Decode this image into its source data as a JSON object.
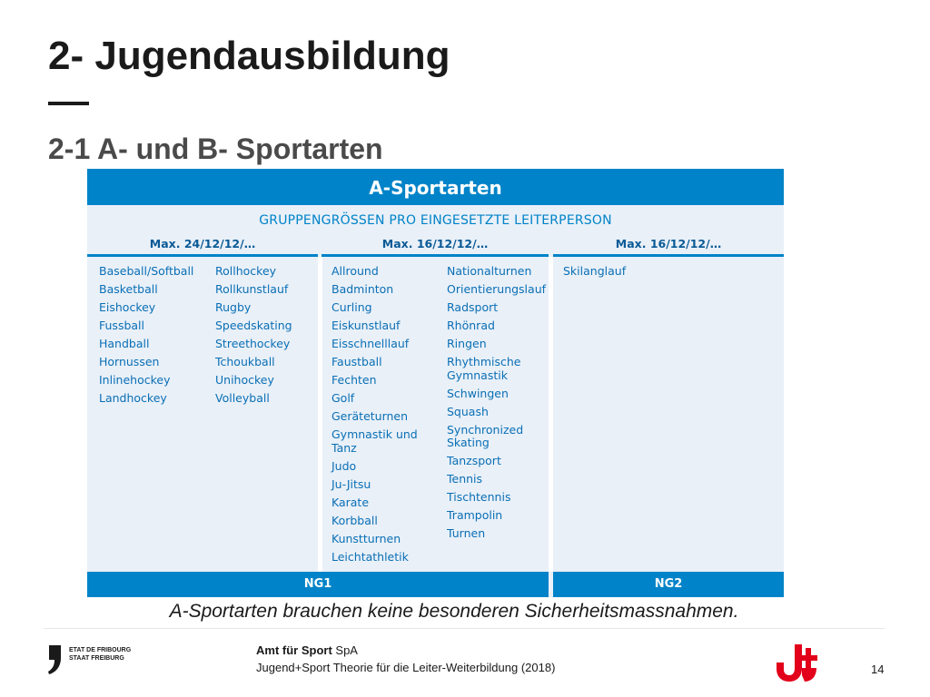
{
  "slide": {
    "title": "2- Jugendausbildung",
    "dash": "—",
    "subtitle": "2-1 A- und B- Sportarten",
    "note": "A-Sportarten brauchen keine besonderen Sicherheitsmassnahmen.",
    "page_number": "14"
  },
  "table": {
    "header": "A-Sportarten",
    "group_title": "GRUPPENGRÖSSEN PRO EINGESETZTE LEITERPERSON",
    "columns": [
      {
        "max": "Max. 24/12/12/…",
        "list_a": [
          "Baseball/Softball",
          "Basketball",
          "Eishockey",
          "Fussball",
          "Handball",
          "Hornussen",
          "Inlinehockey",
          "Landhockey"
        ],
        "list_b": [
          "Rollhockey",
          "Rollkunstlauf",
          "Rugby",
          "Speedskating",
          "Streethockey",
          "Tchoukball",
          "Unihockey",
          "Volleyball"
        ]
      },
      {
        "max": "Max. 16/12/12/…",
        "list_a": [
          "Allround",
          "Badminton",
          "Curling",
          "Eiskunstlauf",
          "Eisschnelllauf",
          "Faustball",
          "Fechten",
          "Golf",
          "Geräteturnen",
          "Gymnastik und Tanz",
          "Judo",
          "Ju-Jitsu",
          "Karate",
          "Korbball",
          "Kunstturnen",
          "Leichtathletik"
        ],
        "list_b": [
          "Nationalturnen",
          "Orientierungslauf",
          "Radsport",
          "Rhönrad",
          "Ringen",
          "Rhythmische Gymnastik",
          "Schwingen",
          "Squash",
          "Synchronized Skating",
          "Tanzsport",
          "Tennis",
          "Tischtennis",
          "Trampolin",
          "Turnen"
        ]
      },
      {
        "max": "Max. 16/12/12/…",
        "list_a": [
          "Skilanglauf"
        ],
        "list_b": []
      }
    ],
    "footer_ng1": "NG1",
    "footer_ng2": "NG2"
  },
  "footer": {
    "canton_line1": "ETAT DE FRIBOURG",
    "canton_line2": "STAAT FREIBURG",
    "office_bold": "Amt für Sport",
    "office_suffix": " SpA",
    "course": "Jugend+Sport Theorie für die Leiter-Weiterbildung (2018)"
  },
  "colors": {
    "brand_blue": "#0083c8",
    "table_bg": "#e9f0f8",
    "js_red": "#e2001a"
  }
}
